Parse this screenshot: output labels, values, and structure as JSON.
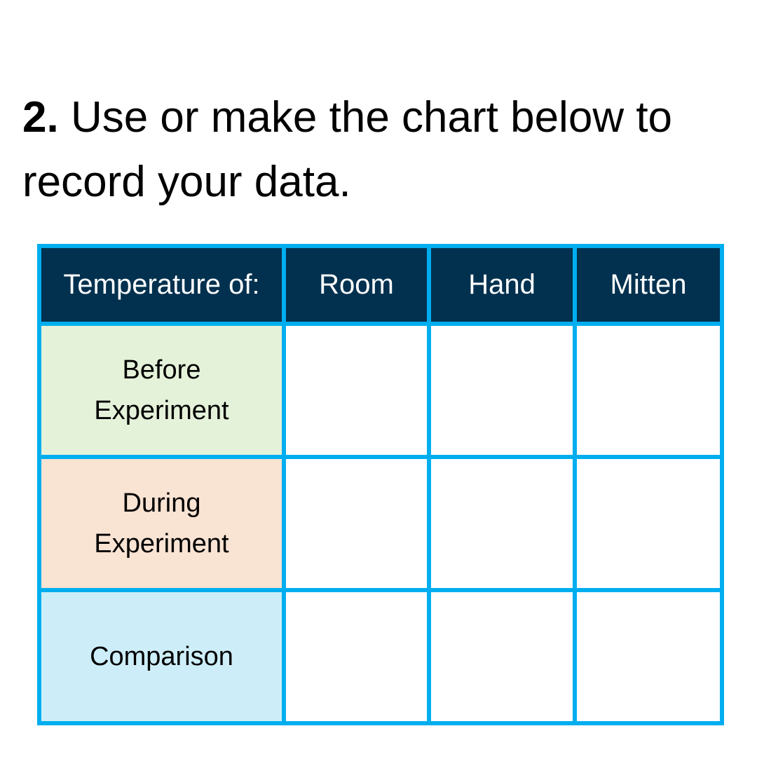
{
  "prompt": {
    "number": "2.",
    "text": "Use or make the chart below to record your data."
  },
  "table": {
    "headers": [
      "Temperature of:",
      "Room",
      "Hand",
      "Mitten"
    ],
    "rows": [
      {
        "label_line1": "Before",
        "label_line2": "Experiment",
        "cells": [
          "",
          "",
          ""
        ]
      },
      {
        "label_line1": "During",
        "label_line2": "Experiment",
        "cells": [
          "",
          "",
          ""
        ]
      },
      {
        "label_line1": "Comparison",
        "label_line2": "",
        "cells": [
          "",
          "",
          ""
        ]
      }
    ]
  },
  "colors": {
    "border": "#00AEEF",
    "header_bg": "#01314F",
    "before_bg": "#E5F2DA",
    "during_bg": "#F9E3D3",
    "comparison_bg": "#CDEEF9"
  }
}
